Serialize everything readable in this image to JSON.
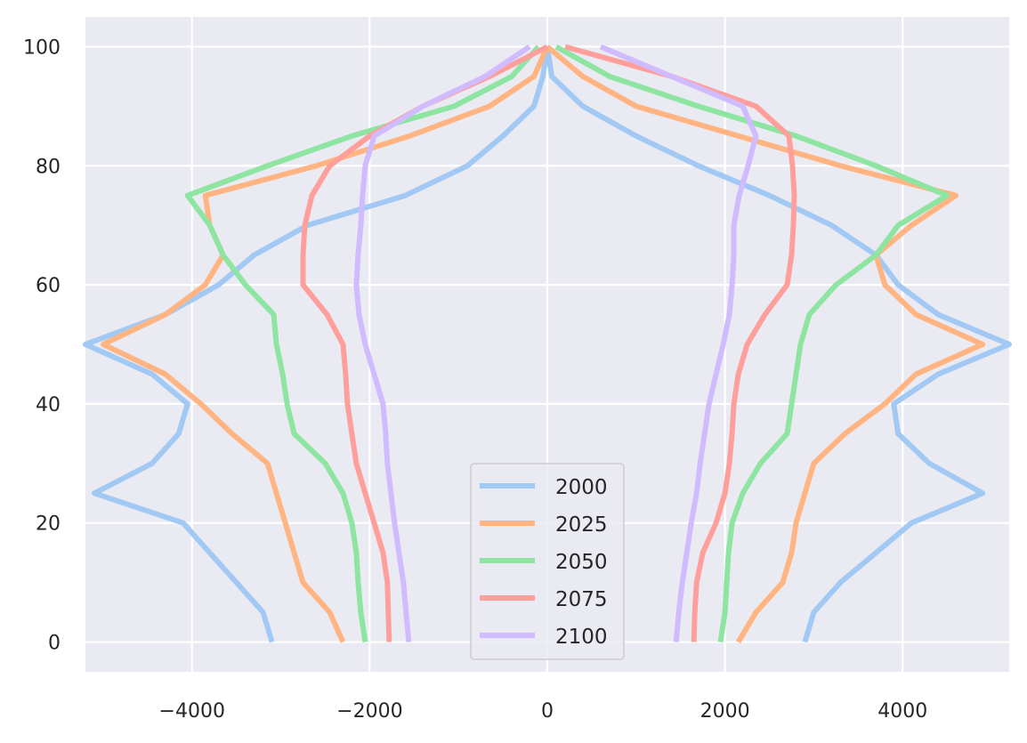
{
  "chart_data": {
    "type": "line",
    "title": "",
    "xlabel": "",
    "ylabel": "",
    "xlim": [
      -5200,
      5200
    ],
    "ylim": [
      -5,
      105
    ],
    "grid": true,
    "legend_position": "bottom-center",
    "style": {
      "background": "#EAEAF2",
      "grid_color": "#FFFFFF"
    },
    "xticks": [
      {
        "value": -4000,
        "label": "−4000"
      },
      {
        "value": -2000,
        "label": "−2000"
      },
      {
        "value": 0,
        "label": "0"
      },
      {
        "value": 2000,
        "label": "2000"
      },
      {
        "value": 4000,
        "label": "4000"
      }
    ],
    "yticks": [
      {
        "value": 0,
        "label": "0"
      },
      {
        "value": 20,
        "label": "20"
      },
      {
        "value": 40,
        "label": "40"
      },
      {
        "value": 60,
        "label": "60"
      },
      {
        "value": 80,
        "label": "80"
      },
      {
        "value": 100,
        "label": "100"
      }
    ],
    "series": [
      {
        "name": "2000",
        "color": "#A1C9F4",
        "left": [
          [
            -3100,
            0
          ],
          [
            -3200,
            5
          ],
          [
            -3500,
            10
          ],
          [
            -3800,
            15
          ],
          [
            -4100,
            20
          ],
          [
            -5100,
            25
          ],
          [
            -4450,
            30
          ],
          [
            -4150,
            35
          ],
          [
            -4050,
            40
          ],
          [
            -4450,
            45
          ],
          [
            -5200,
            50
          ],
          [
            -4300,
            55
          ],
          [
            -3700,
            60
          ],
          [
            -3300,
            65
          ],
          [
            -2700,
            70
          ],
          [
            -1600,
            75
          ],
          [
            -900,
            80
          ],
          [
            -500,
            85
          ],
          [
            -150,
            90
          ],
          [
            -50,
            95
          ],
          [
            0,
            100
          ]
        ],
        "right": [
          [
            2900,
            0
          ],
          [
            3000,
            5
          ],
          [
            3300,
            10
          ],
          [
            3700,
            15
          ],
          [
            4100,
            20
          ],
          [
            4900,
            25
          ],
          [
            4300,
            30
          ],
          [
            3950,
            35
          ],
          [
            3900,
            40
          ],
          [
            4400,
            45
          ],
          [
            5200,
            50
          ],
          [
            4400,
            55
          ],
          [
            3950,
            60
          ],
          [
            3700,
            65
          ],
          [
            3200,
            70
          ],
          [
            2500,
            75
          ],
          [
            1700,
            80
          ],
          [
            1000,
            85
          ],
          [
            400,
            90
          ],
          [
            50,
            95
          ],
          [
            0,
            100
          ]
        ]
      },
      {
        "name": "2025",
        "color": "#FFB482",
        "left": [
          [
            -2300,
            0
          ],
          [
            -2450,
            5
          ],
          [
            -2750,
            10
          ],
          [
            -2850,
            15
          ],
          [
            -2950,
            20
          ],
          [
            -3050,
            25
          ],
          [
            -3150,
            30
          ],
          [
            -3550,
            35
          ],
          [
            -3900,
            40
          ],
          [
            -4300,
            45
          ],
          [
            -5000,
            50
          ],
          [
            -4300,
            55
          ],
          [
            -3850,
            60
          ],
          [
            -3650,
            65
          ],
          [
            -3800,
            70
          ],
          [
            -3850,
            75
          ],
          [
            -2600,
            80
          ],
          [
            -1550,
            85
          ],
          [
            -650,
            90
          ],
          [
            -150,
            95
          ],
          [
            0,
            100
          ]
        ],
        "right": [
          [
            2150,
            0
          ],
          [
            2350,
            5
          ],
          [
            2650,
            10
          ],
          [
            2750,
            15
          ],
          [
            2800,
            20
          ],
          [
            2900,
            25
          ],
          [
            3000,
            30
          ],
          [
            3350,
            35
          ],
          [
            3800,
            40
          ],
          [
            4150,
            45
          ],
          [
            4900,
            50
          ],
          [
            4150,
            55
          ],
          [
            3800,
            60
          ],
          [
            3700,
            65
          ],
          [
            4100,
            70
          ],
          [
            4600,
            75
          ],
          [
            3300,
            80
          ],
          [
            2150,
            85
          ],
          [
            1000,
            90
          ],
          [
            400,
            95
          ],
          [
            0,
            100
          ]
        ]
      },
      {
        "name": "2050",
        "color": "#8DE5A1",
        "left": [
          [
            -2050,
            0
          ],
          [
            -2100,
            5
          ],
          [
            -2130,
            10
          ],
          [
            -2150,
            15
          ],
          [
            -2200,
            20
          ],
          [
            -2300,
            25
          ],
          [
            -2500,
            30
          ],
          [
            -2850,
            35
          ],
          [
            -2930,
            40
          ],
          [
            -2980,
            45
          ],
          [
            -3050,
            50
          ],
          [
            -3080,
            55
          ],
          [
            -3400,
            60
          ],
          [
            -3650,
            65
          ],
          [
            -3800,
            70
          ],
          [
            -4050,
            75
          ],
          [
            -3150,
            80
          ],
          [
            -2200,
            85
          ],
          [
            -1050,
            90
          ],
          [
            -400,
            95
          ],
          [
            -100,
            100
          ]
        ],
        "right": [
          [
            1950,
            0
          ],
          [
            2000,
            5
          ],
          [
            2020,
            10
          ],
          [
            2040,
            15
          ],
          [
            2080,
            20
          ],
          [
            2200,
            25
          ],
          [
            2400,
            30
          ],
          [
            2700,
            35
          ],
          [
            2750,
            40
          ],
          [
            2800,
            45
          ],
          [
            2850,
            50
          ],
          [
            2950,
            55
          ],
          [
            3250,
            60
          ],
          [
            3700,
            65
          ],
          [
            3950,
            70
          ],
          [
            4500,
            75
          ],
          [
            3700,
            80
          ],
          [
            2800,
            85
          ],
          [
            1700,
            90
          ],
          [
            700,
            95
          ],
          [
            100,
            100
          ]
        ]
      },
      {
        "name": "2075",
        "color": "#FF9F9B",
        "left": [
          [
            -1780,
            0
          ],
          [
            -1790,
            5
          ],
          [
            -1800,
            10
          ],
          [
            -1850,
            15
          ],
          [
            -1950,
            20
          ],
          [
            -2050,
            25
          ],
          [
            -2150,
            30
          ],
          [
            -2200,
            35
          ],
          [
            -2250,
            40
          ],
          [
            -2270,
            45
          ],
          [
            -2300,
            50
          ],
          [
            -2480,
            55
          ],
          [
            -2750,
            60
          ],
          [
            -2750,
            65
          ],
          [
            -2730,
            70
          ],
          [
            -2650,
            75
          ],
          [
            -2450,
            80
          ],
          [
            -2000,
            85
          ],
          [
            -1400,
            90
          ],
          [
            -650,
            95
          ],
          [
            0,
            100
          ]
        ],
        "right": [
          [
            1650,
            0
          ],
          [
            1660,
            5
          ],
          [
            1680,
            10
          ],
          [
            1750,
            15
          ],
          [
            1900,
            20
          ],
          [
            2000,
            25
          ],
          [
            2050,
            30
          ],
          [
            2080,
            35
          ],
          [
            2100,
            40
          ],
          [
            2150,
            45
          ],
          [
            2250,
            50
          ],
          [
            2450,
            55
          ],
          [
            2700,
            60
          ],
          [
            2750,
            65
          ],
          [
            2770,
            70
          ],
          [
            2780,
            75
          ],
          [
            2760,
            80
          ],
          [
            2720,
            85
          ],
          [
            2350,
            90
          ],
          [
            1400,
            95
          ],
          [
            200,
            100
          ]
        ]
      },
      {
        "name": "2100",
        "color": "#D0BBFF",
        "left": [
          [
            -1560,
            0
          ],
          [
            -1590,
            5
          ],
          [
            -1620,
            10
          ],
          [
            -1670,
            15
          ],
          [
            -1720,
            20
          ],
          [
            -1760,
            25
          ],
          [
            -1800,
            30
          ],
          [
            -1820,
            35
          ],
          [
            -1850,
            40
          ],
          [
            -1950,
            45
          ],
          [
            -2050,
            50
          ],
          [
            -2120,
            55
          ],
          [
            -2150,
            60
          ],
          [
            -2130,
            65
          ],
          [
            -2100,
            70
          ],
          [
            -2080,
            75
          ],
          [
            -2050,
            80
          ],
          [
            -1950,
            85
          ],
          [
            -1400,
            90
          ],
          [
            -700,
            95
          ],
          [
            -200,
            100
          ]
        ],
        "right": [
          [
            1450,
            0
          ],
          [
            1480,
            5
          ],
          [
            1520,
            10
          ],
          [
            1570,
            15
          ],
          [
            1620,
            20
          ],
          [
            1680,
            25
          ],
          [
            1720,
            30
          ],
          [
            1770,
            35
          ],
          [
            1820,
            40
          ],
          [
            1900,
            45
          ],
          [
            1980,
            50
          ],
          [
            2050,
            55
          ],
          [
            2080,
            60
          ],
          [
            2100,
            65
          ],
          [
            2100,
            70
          ],
          [
            2160,
            75
          ],
          [
            2260,
            80
          ],
          [
            2350,
            85
          ],
          [
            2200,
            90
          ],
          [
            1400,
            95
          ],
          [
            600,
            100
          ]
        ]
      }
    ]
  }
}
